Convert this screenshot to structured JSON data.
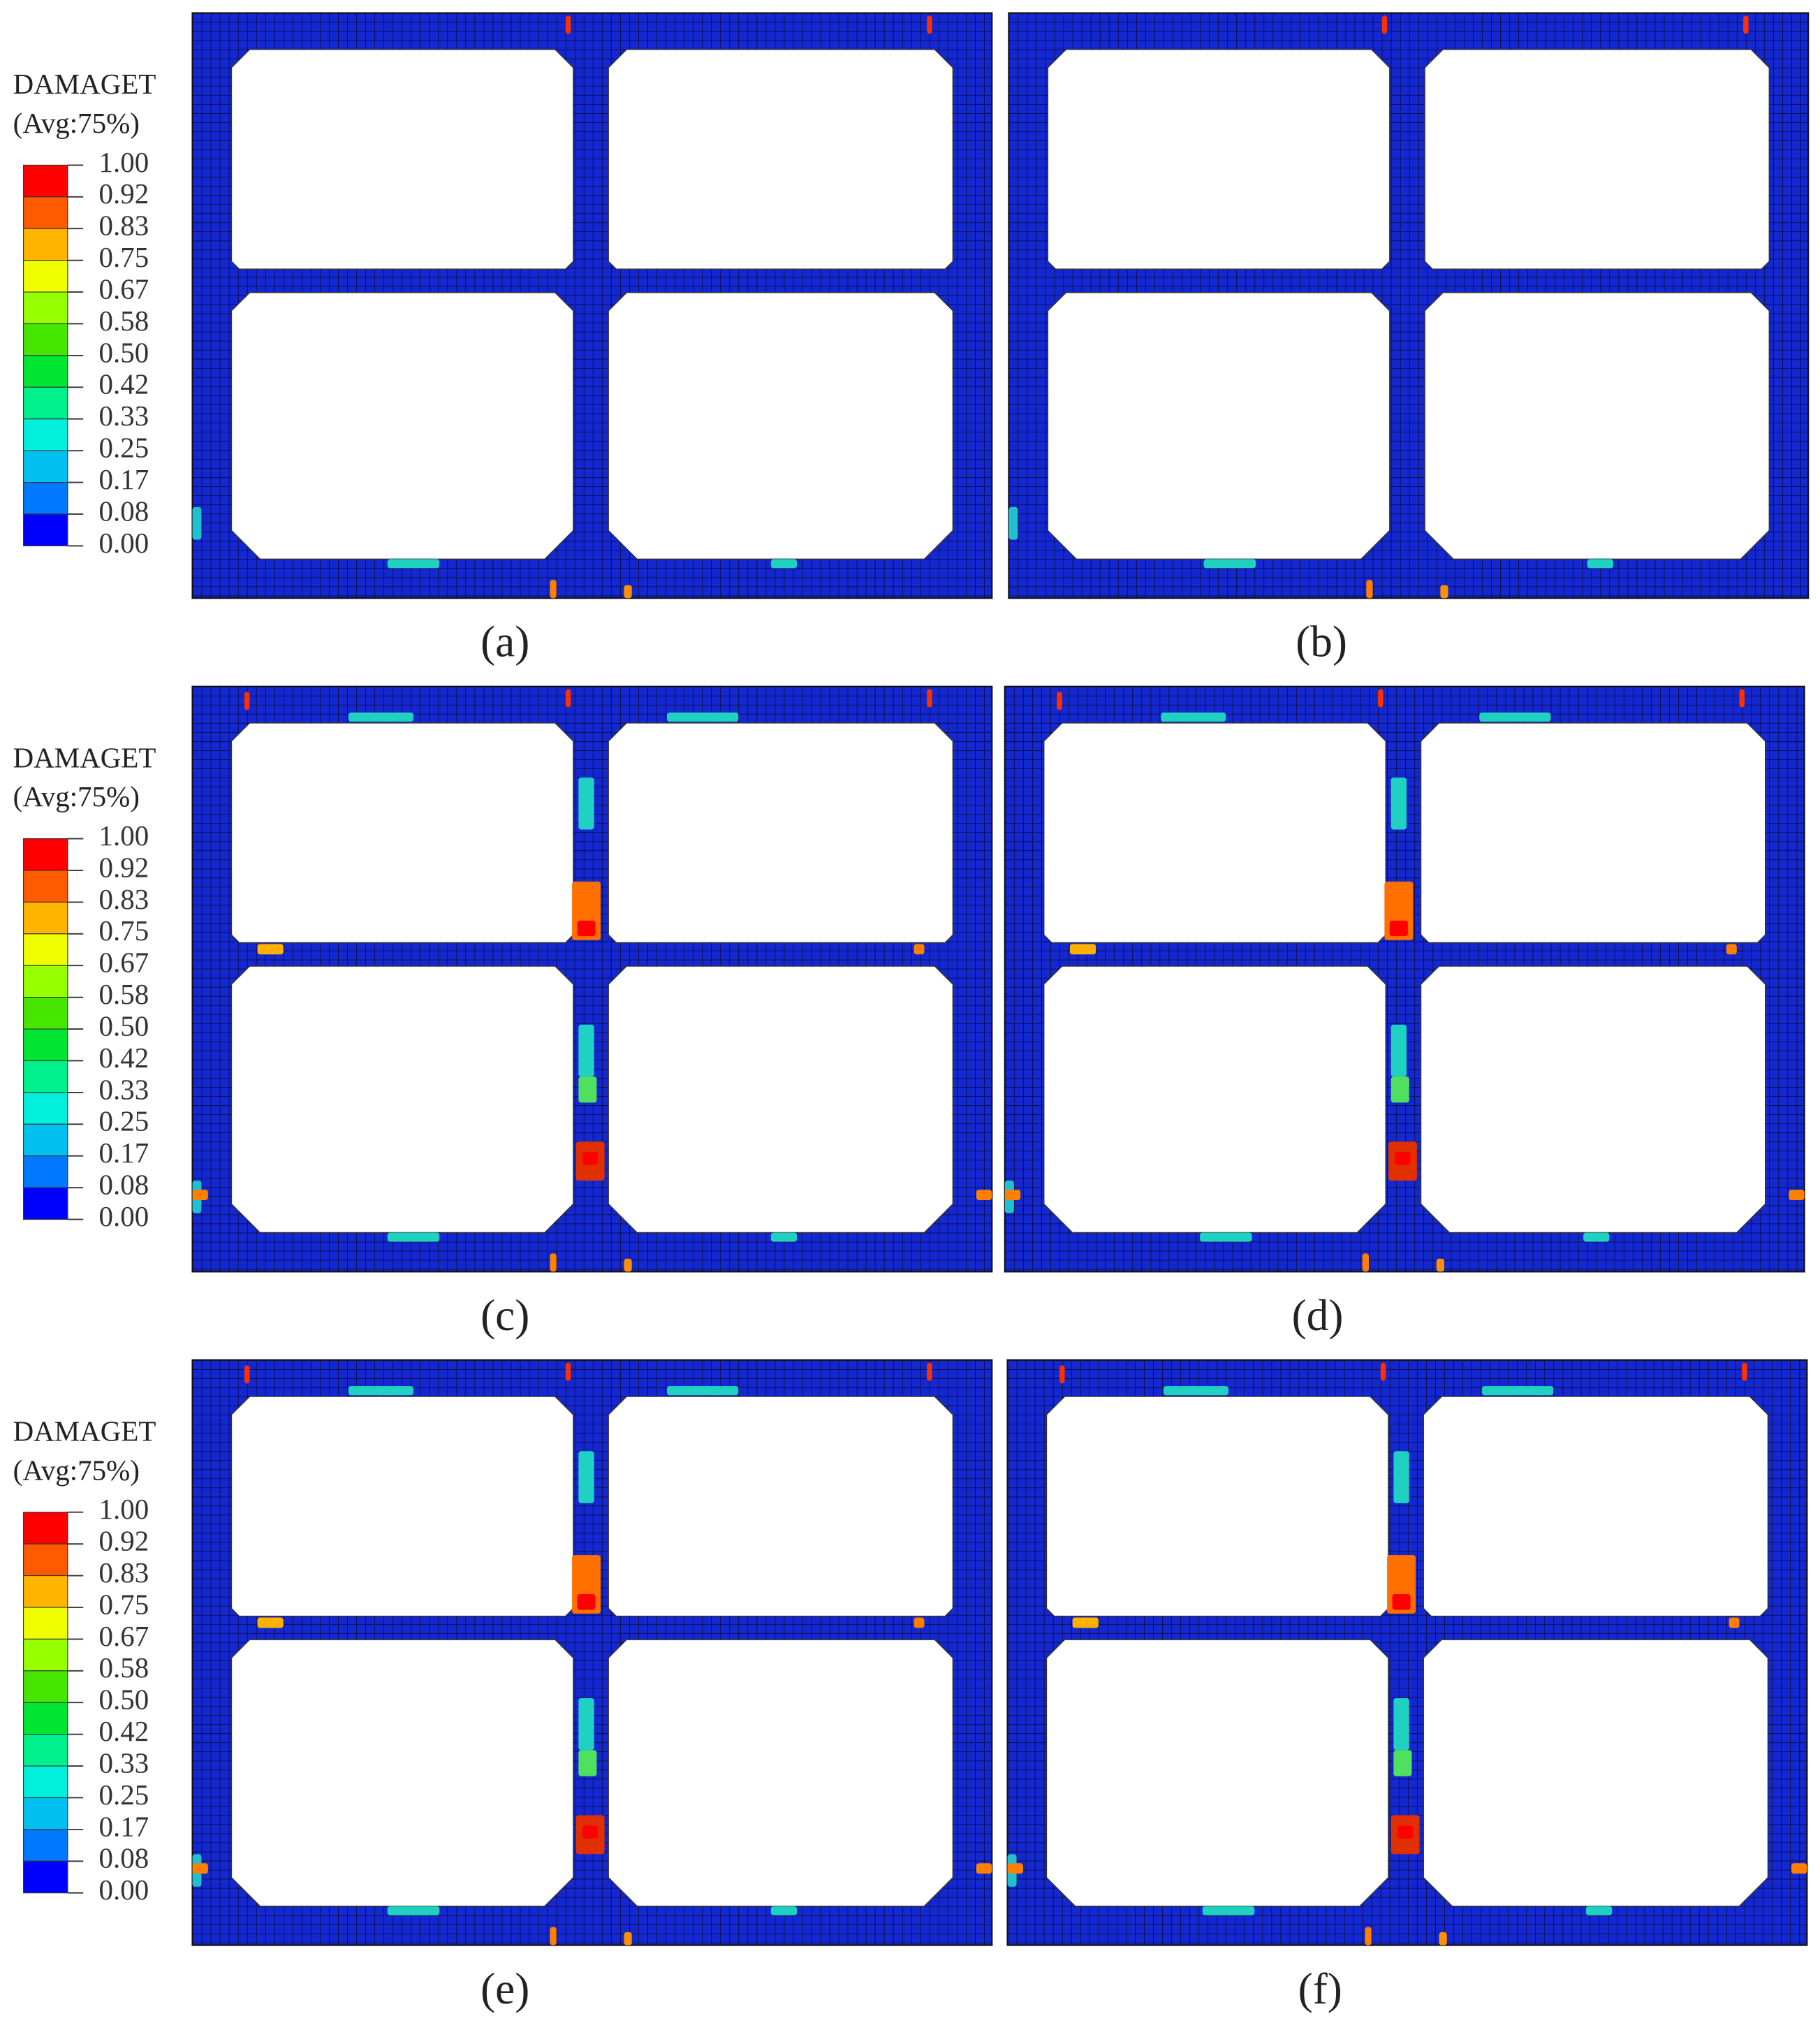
{
  "legends": [
    {
      "title": "DAMAGET",
      "subtitle": "(Avg:75%)",
      "levels": [
        "1.00",
        "0.92",
        "0.83",
        "0.75",
        "0.67",
        "0.58",
        "0.50",
        "0.42",
        "0.33",
        "0.25",
        "0.17",
        "0.08",
        "0.00"
      ],
      "colors": [
        "#ff0000",
        "#ff5a00",
        "#ffb400",
        "#f0ff00",
        "#96ff00",
        "#46e600",
        "#00e632",
        "#00f08c",
        "#00f0dc",
        "#00c0f0",
        "#0078ff",
        "#0000ff"
      ]
    },
    {
      "title": "DAMAGET",
      "subtitle": "(Avg:75%)",
      "levels": [
        "1.00",
        "0.92",
        "0.83",
        "0.75",
        "0.67",
        "0.58",
        "0.50",
        "0.42",
        "0.33",
        "0.25",
        "0.17",
        "0.08",
        "0.00"
      ],
      "colors": [
        "#ff0000",
        "#ff5a00",
        "#ffb400",
        "#f0ff00",
        "#96ff00",
        "#46e600",
        "#00e632",
        "#00f08c",
        "#00f0dc",
        "#00c0f0",
        "#0078ff",
        "#0000ff"
      ]
    },
    {
      "title": "DAMAGET",
      "subtitle": "(Avg:75%)",
      "levels": [
        "1.00",
        "0.92",
        "0.83",
        "0.75",
        "0.67",
        "0.58",
        "0.50",
        "0.42",
        "0.33",
        "0.25",
        "0.17",
        "0.08",
        "0.00"
      ],
      "colors": [
        "#ff0000",
        "#ff5a00",
        "#ffb400",
        "#f0ff00",
        "#96ff00",
        "#46e600",
        "#00e632",
        "#00f08c",
        "#00f0dc",
        "#00c0f0",
        "#0078ff",
        "#0000ff"
      ]
    }
  ],
  "panels": [
    {
      "label": "(a)"
    },
    {
      "label": "(b)"
    },
    {
      "label": "(c)"
    },
    {
      "label": "(d)"
    },
    {
      "label": "(e)"
    },
    {
      "label": "(f)"
    }
  ]
}
